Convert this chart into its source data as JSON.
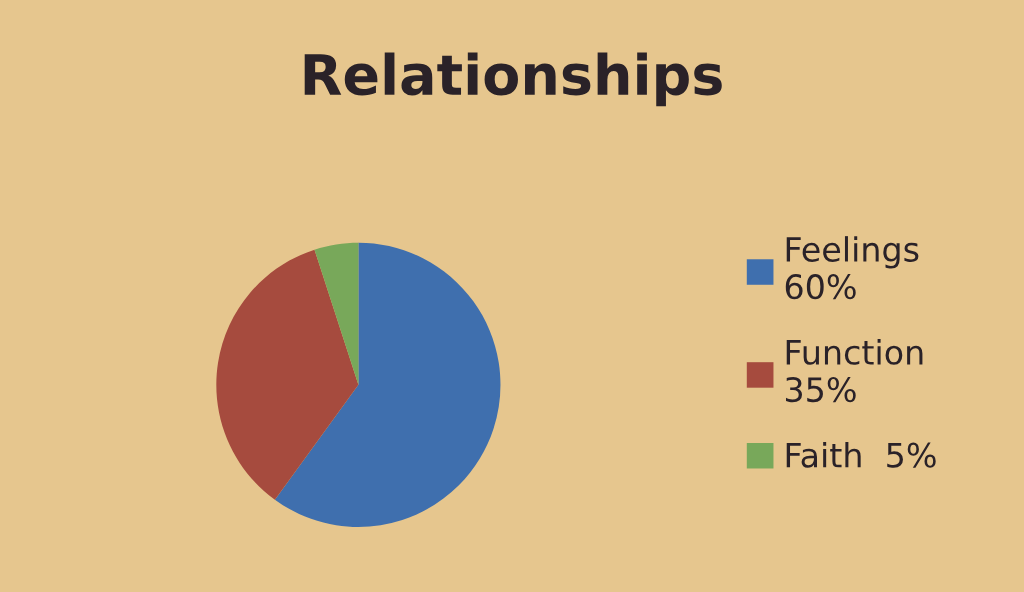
{
  "chart_data": {
    "type": "pie",
    "title": "Relationships",
    "categories": [
      "Feelings\n60%",
      "Function\n35%",
      "Faith  5%"
    ],
    "values": [
      60,
      35,
      5
    ],
    "colors": [
      "#3f6fae",
      "#a64b3e",
      "#78a85a"
    ],
    "legend": "right"
  }
}
